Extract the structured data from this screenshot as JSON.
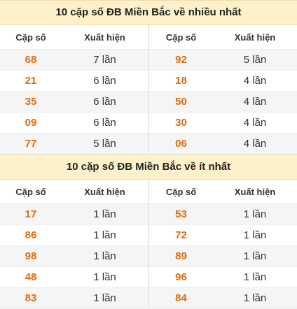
{
  "sections": [
    {
      "title": "10 cặp số ĐB Miền Bắc về nhiều nhất",
      "headers": [
        "Cặp số",
        "Xuất hiện",
        "Cặp số",
        "Xuất hiện"
      ],
      "rows": [
        {
          "p1": "68",
          "c1": "7 lần",
          "p2": "92",
          "c2": "5 lần"
        },
        {
          "p1": "21",
          "c1": "6 lần",
          "p2": "18",
          "c2": "4 lần"
        },
        {
          "p1": "35",
          "c1": "6 lần",
          "p2": "50",
          "c2": "4 lần"
        },
        {
          "p1": "09",
          "c1": "6 lần",
          "p2": "30",
          "c2": "4 lần"
        },
        {
          "p1": "77",
          "c1": "5 lần",
          "p2": "06",
          "c2": "4 lần"
        }
      ]
    },
    {
      "title": "10 cặp số ĐB Miền Bắc về ít nhất",
      "headers": [
        "Cặp số",
        "Xuất hiện",
        "Cặp số",
        "Xuất hiện"
      ],
      "rows": [
        {
          "p1": "17",
          "c1": "1 lần",
          "p2": "53",
          "c2": "1 lần"
        },
        {
          "p1": "86",
          "c1": "1 lần",
          "p2": "72",
          "c2": "1 lần"
        },
        {
          "p1": "98",
          "c1": "1 lần",
          "p2": "89",
          "c2": "1 lần"
        },
        {
          "p1": "48",
          "c1": "1 lần",
          "p2": "96",
          "c2": "1 lần"
        },
        {
          "p1": "83",
          "c1": "1 lần",
          "p2": "84",
          "c2": "1 lần"
        }
      ]
    }
  ],
  "colors": {
    "title_bg": "#fdf1c9",
    "pair_number": "#e06a0a",
    "row_alt": "#f5f5f5"
  }
}
